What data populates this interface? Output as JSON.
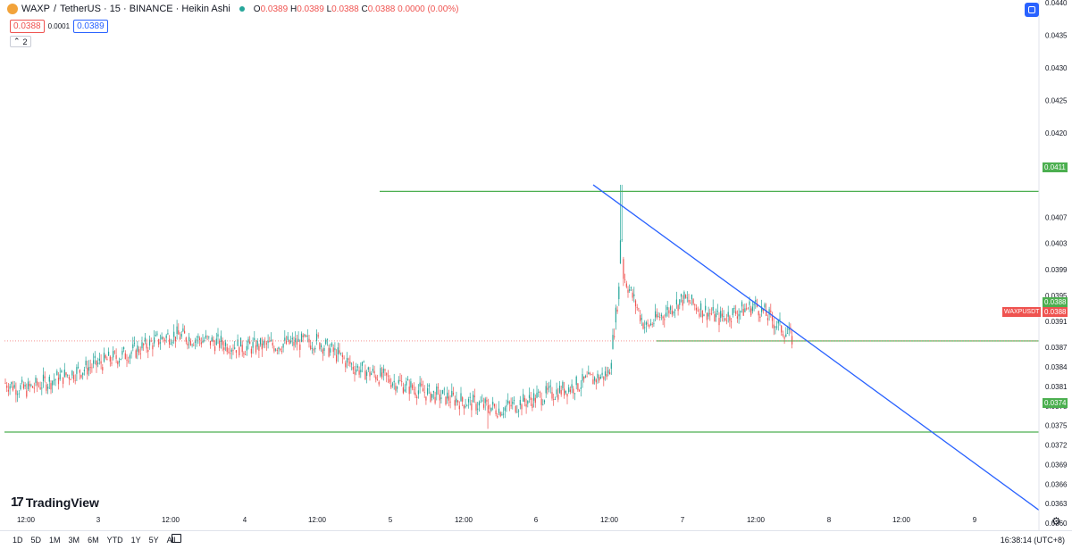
{
  "header": {
    "symbol": "WAXP",
    "separator": "/",
    "quote": "TetherUS · 15 · BINANCE · Heikin Ashi",
    "open_label": "O",
    "open": "0.0389",
    "high_label": "H",
    "high": "0.0389",
    "low_label": "L",
    "low": "0.0388",
    "close_label": "C",
    "close": "0.0388",
    "change": "0.0000 (0.00%)"
  },
  "trade": {
    "sell": "0.0388",
    "spread": "0.0001",
    "buy": "0.0389"
  },
  "indicators_toggle": {
    "label": "2"
  },
  "brand": {
    "name": "TradingView"
  },
  "bottom_bar": {
    "ranges": [
      "1D",
      "5D",
      "1M",
      "3M",
      "6M",
      "YTD",
      "1Y",
      "5Y",
      "All"
    ],
    "clock": "16:38:14 (UTC+8)"
  },
  "price_tags": {
    "resistance": "0.0411",
    "last": "0.0388",
    "prev": "0.0388",
    "support": "0.0374",
    "symbol_label": "WAXPUSDT"
  },
  "colors": {
    "up": "#26a69a",
    "down": "#ef5350",
    "hline": "#4caf50",
    "trend": "#2962ff"
  },
  "chart_data": {
    "type": "candlestick",
    "style": "Heikin Ashi",
    "interval": "15",
    "y_ticks": [
      "0.0440",
      "0.0435",
      "0.0430",
      "0.0425",
      "0.0420",
      "0.0415",
      "0.0411",
      "0.0407",
      "0.0403",
      "0.0399",
      "0.0395",
      "0.0391",
      "0.0388",
      "0.0387",
      "0.0384",
      "0.0381",
      "0.0378",
      "0.0375",
      "0.0372",
      "0.0369",
      "0.0366",
      "0.0363",
      "0.0360"
    ],
    "x_ticks": [
      "12:00",
      "3",
      "12:00",
      "4",
      "12:00",
      "5",
      "12:00",
      "6",
      "12:00",
      "7",
      "12:00",
      "8",
      "12:00",
      "9"
    ],
    "ylim": [
      0.036,
      0.044
    ],
    "key_path": [
      {
        "x": "2 00:00",
        "y": 0.03845
      },
      {
        "x": "2 12:00",
        "y": 0.03805
      },
      {
        "x": "3 06:00",
        "y": 0.03865
      },
      {
        "x": "3 12:00",
        "y": 0.0389
      },
      {
        "x": "4 00:00",
        "y": 0.0387
      },
      {
        "x": "4 12:00",
        "y": 0.0388
      },
      {
        "x": "4 18:00",
        "y": 0.0384
      },
      {
        "x": "5 06:00",
        "y": 0.038
      },
      {
        "x": "5 18:00",
        "y": 0.03775
      },
      {
        "x": "6 06:00",
        "y": 0.0381
      },
      {
        "x": "6 12:00",
        "y": 0.0383
      },
      {
        "x": "6 14:00",
        "y": 0.0399
      },
      {
        "x": "6 18:00",
        "y": 0.039
      },
      {
        "x": "7 00:00",
        "y": 0.03945
      },
      {
        "x": "7 06:00",
        "y": 0.03915
      },
      {
        "x": "7 12:00",
        "y": 0.03935
      },
      {
        "x": "7 18:00",
        "y": 0.03885
      }
    ],
    "horizontal_levels": [
      0.0411,
      0.0388,
      0.0374
    ],
    "trendline": [
      {
        "x": "6 12:00",
        "y": 0.0412
      },
      {
        "x": "9 12:00",
        "y": 0.0362
      }
    ]
  }
}
